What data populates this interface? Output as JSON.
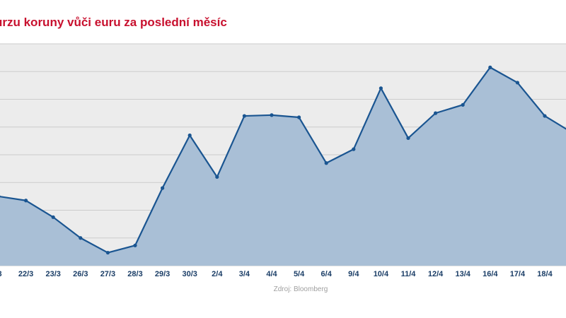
{
  "chart_data": {
    "type": "area",
    "title": "urzu koruny vůči euru za poslední měsíc",
    "source": "Zdroj: Bloomberg",
    "categories": [
      "/3",
      "22/3",
      "23/3",
      "26/3",
      "27/3",
      "28/3",
      "29/3",
      "30/3",
      "2/4",
      "3/4",
      "4/4",
      "5/4",
      "6/4",
      "9/4",
      "10/4",
      "11/4",
      "12/4",
      "13/4",
      "16/4",
      "17/4",
      "18/4",
      ""
    ],
    "series": [
      {
        "values": [
          29.5,
          29.35,
          28.75,
          28.0,
          27.47,
          27.73,
          29.8,
          31.7,
          30.2,
          32.4,
          32.43,
          32.35,
          30.7,
          31.2,
          33.4,
          31.6,
          32.5,
          32.8,
          34.15,
          33.6,
          32.4,
          31.8
        ]
      }
    ],
    "ylim": [
      35.0,
      27.0
    ],
    "gridlines": 8,
    "grid": true,
    "y_tick_labels_visible": false,
    "legend": "none",
    "colors": {
      "title": "#c8102e",
      "line": "#1a5591",
      "fill": "#a9bfd6",
      "plot_background": "#ececec",
      "gridline": "#cccccc",
      "tick_label": "#1a3d66",
      "source": "#a0a0a0"
    }
  }
}
